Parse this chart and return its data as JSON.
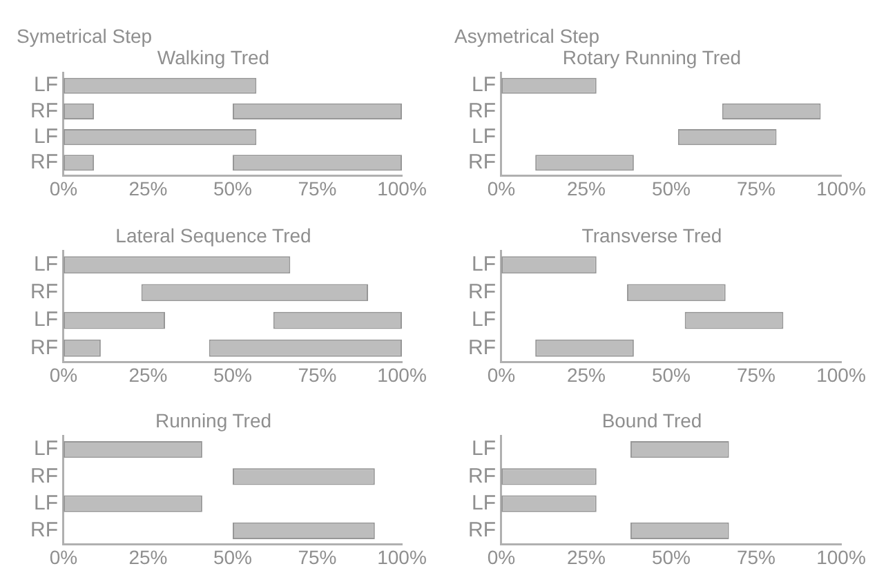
{
  "chart_data": [
    {
      "type": "bar",
      "orientation": "horizontal",
      "subtitle": "Symetrical Step",
      "title": "Walking Tred",
      "categories": [
        "LF",
        "RF",
        "LF",
        "RF"
      ],
      "series": [
        {
          "color": "#bdbdbd",
          "base": [
            0,
            0,
            0,
            0
          ],
          "values": [
            57,
            9,
            57,
            9
          ]
        },
        {
          "color": "#bdbdbd",
          "base": [
            null,
            50,
            null,
            50
          ],
          "values": [
            null,
            50,
            null,
            50
          ]
        }
      ],
      "xlim": [
        0,
        100
      ],
      "xticks": [
        {
          "value": 0,
          "label": "0%"
        },
        {
          "value": 25,
          "label": "25%"
        },
        {
          "value": 50,
          "label": "50%"
        },
        {
          "value": 75,
          "label": "75%"
        },
        {
          "value": 100,
          "label": "100%"
        }
      ],
      "grid": false
    },
    {
      "type": "bar",
      "orientation": "horizontal",
      "subtitle": "Asymetrical Step",
      "title": "Rotary Running Tred",
      "categories": [
        "LF",
        "RF",
        "LF",
        "RF"
      ],
      "series": [
        {
          "color": "#bdbdbd",
          "base": [
            0,
            65,
            52,
            10
          ],
          "values": [
            28,
            29,
            29,
            29
          ]
        }
      ],
      "xlim": [
        0,
        100
      ],
      "xticks": [
        {
          "value": 0,
          "label": "0%"
        },
        {
          "value": 25,
          "label": "25%"
        },
        {
          "value": 50,
          "label": "50%"
        },
        {
          "value": 75,
          "label": "75%"
        },
        {
          "value": 100,
          "label": "100%"
        }
      ],
      "grid": false
    },
    {
      "type": "bar",
      "orientation": "horizontal",
      "title": "Lateral Sequence Tred",
      "categories": [
        "LF",
        "RF",
        "LF",
        "RF"
      ],
      "series": [
        {
          "color": "#bdbdbd",
          "base": [
            0,
            23,
            0,
            0
          ],
          "values": [
            67,
            67,
            30,
            11
          ]
        },
        {
          "color": "#bdbdbd",
          "base": [
            null,
            null,
            62,
            43
          ],
          "values": [
            null,
            null,
            38,
            57
          ]
        }
      ],
      "xlim": [
        0,
        100
      ],
      "xticks": [
        {
          "value": 0,
          "label": "0%"
        },
        {
          "value": 25,
          "label": "25%"
        },
        {
          "value": 50,
          "label": "50%"
        },
        {
          "value": 75,
          "label": "75%"
        },
        {
          "value": 100,
          "label": "100%"
        }
      ],
      "grid": false
    },
    {
      "type": "bar",
      "orientation": "horizontal",
      "title": "Transverse Tred",
      "categories": [
        "LF",
        "RF",
        "LF",
        "RF"
      ],
      "series": [
        {
          "color": "#bdbdbd",
          "base": [
            0,
            37,
            54,
            10
          ],
          "values": [
            28,
            29,
            29,
            29
          ]
        }
      ],
      "xlim": [
        0,
        100
      ],
      "xticks": [
        {
          "value": 0,
          "label": "0%"
        },
        {
          "value": 25,
          "label": "25%"
        },
        {
          "value": 50,
          "label": "50%"
        },
        {
          "value": 75,
          "label": "75%"
        },
        {
          "value": 100,
          "label": "100%"
        }
      ],
      "grid": false
    },
    {
      "type": "bar",
      "orientation": "horizontal",
      "title": "Running Tred",
      "categories": [
        "LF",
        "RF",
        "LF",
        "RF"
      ],
      "series": [
        {
          "color": "#bdbdbd",
          "base": [
            0,
            50,
            0,
            50
          ],
          "values": [
            41,
            42,
            41,
            42
          ]
        }
      ],
      "xlim": [
        0,
        100
      ],
      "xticks": [
        {
          "value": 0,
          "label": "0%"
        },
        {
          "value": 25,
          "label": "25%"
        },
        {
          "value": 50,
          "label": "50%"
        },
        {
          "value": 75,
          "label": "75%"
        },
        {
          "value": 100,
          "label": "100%"
        }
      ],
      "grid": false
    },
    {
      "type": "bar",
      "orientation": "horizontal",
      "title": "Bound Tred",
      "categories": [
        "LF",
        "RF",
        "LF",
        "RF"
      ],
      "series": [
        {
          "color": "#bdbdbd",
          "base": [
            38,
            0,
            0,
            38
          ],
          "values": [
            29,
            28,
            28,
            29
          ]
        }
      ],
      "xlim": [
        0,
        100
      ],
      "xticks": [
        {
          "value": 0,
          "label": "0%"
        },
        {
          "value": 25,
          "label": "25%"
        },
        {
          "value": 50,
          "label": "50%"
        },
        {
          "value": 75,
          "label": "75%"
        },
        {
          "value": 100,
          "label": "100%"
        }
      ],
      "grid": false
    }
  ]
}
